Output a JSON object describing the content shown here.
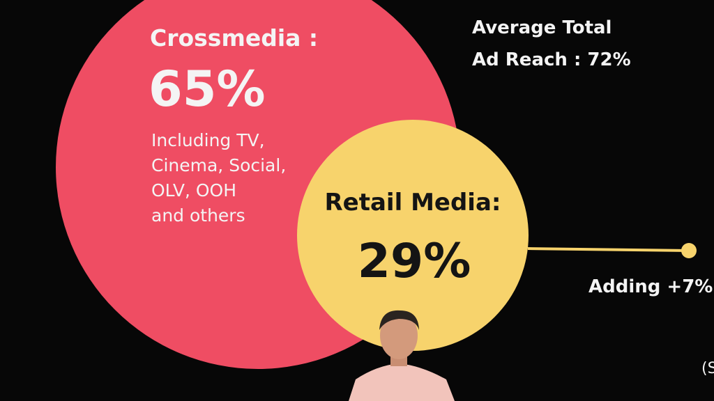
{
  "crossmedia": {
    "label": "Crossmedia :",
    "value": "65%",
    "details": [
      "Including TV,",
      "Cinema, Social,",
      "OLV, OOH",
      "and others"
    ]
  },
  "total_reach": {
    "lines": [
      "Average Total",
      "Ad Reach : 72%"
    ]
  },
  "retail_media": {
    "label": "Retail Media:",
    "value": "29%"
  },
  "adding": {
    "label": "Adding +7%"
  },
  "edge_text": "(S"
}
